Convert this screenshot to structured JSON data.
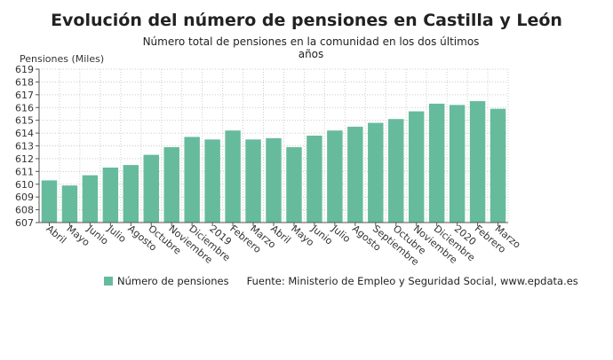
{
  "chart_data": {
    "type": "bar",
    "title": "Evolución del número de pensiones en Castilla y León",
    "subtitle": "Número total de pensiones en la comunidad en los dos últimos años",
    "ylabel": "Pensiones (Miles)",
    "xlabel": "",
    "ylim": [
      607,
      619
    ],
    "yticks": [
      607,
      608,
      609,
      610,
      611,
      612,
      613,
      614,
      615,
      616,
      617,
      618,
      619
    ],
    "grid": true,
    "legend_position": "bottom",
    "categories": [
      "Abril",
      "Mayo",
      "Junio",
      "Julio",
      "Agosto",
      "Octubre",
      "Noviembre",
      "Diciembre",
      "2019",
      "Febrero",
      "Marzo",
      "Abril",
      "Mayo",
      "Junio",
      "Julio",
      "Agosto",
      "Septiembre",
      "Octubre",
      "Noviembre",
      "Diciembre",
      "2020",
      "Febrero",
      "Marzo"
    ],
    "series": [
      {
        "name": "Número de pensiones",
        "color": "#66bb9d",
        "values": [
          610.3,
          609.9,
          610.7,
          611.3,
          611.5,
          612.3,
          612.9,
          613.7,
          613.5,
          614.2,
          613.5,
          613.6,
          612.9,
          613.8,
          614.2,
          614.5,
          614.8,
          615.1,
          615.7,
          616.3,
          616.2,
          616.5,
          615.9
        ]
      }
    ],
    "source": "Fuente: Ministerio de Empleo y Seguridad Social, www.epdata.es"
  }
}
